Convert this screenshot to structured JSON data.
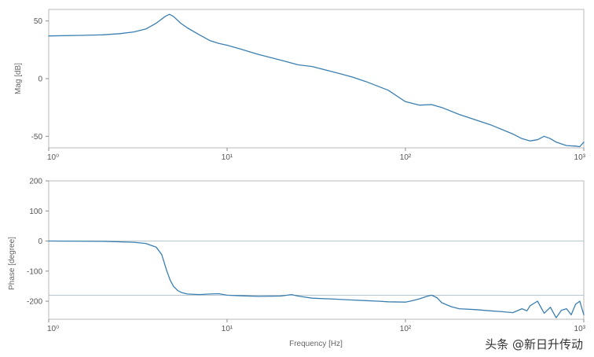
{
  "chart_data": [
    {
      "type": "line",
      "title": "",
      "xlabel": "",
      "ylabel": "Mag [dB]",
      "xscale": "log",
      "xlim": [
        1,
        1000
      ],
      "ylim": [
        -60,
        60
      ],
      "yticks": [
        50,
        0,
        -50
      ],
      "ytick_labels": [
        "50",
        "0",
        "-50"
      ],
      "xtick_labels": [
        "10⁰",
        "10¹",
        "10²",
        "10³"
      ],
      "grid": false,
      "series": [
        {
          "color": "#3a7fb0",
          "x": [
            1,
            1.5,
            2,
            2.5,
            3,
            3.5,
            4,
            4.5,
            4.75,
            5,
            5.5,
            6,
            7,
            8,
            9,
            10,
            12,
            15,
            20,
            25,
            30,
            40,
            50,
            60,
            80,
            100,
            120,
            140,
            160,
            200,
            300,
            400,
            450,
            500,
            550,
            600,
            650,
            700,
            800,
            900,
            950,
            1000
          ],
          "y": [
            37,
            37.5,
            38,
            39,
            40.5,
            43,
            48,
            54,
            55.8,
            54,
            48,
            44,
            38,
            33,
            30.5,
            29,
            25.5,
            21,
            16,
            12,
            10.5,
            5.5,
            1.5,
            -2.5,
            -10,
            -20,
            -23,
            -22.5,
            -25,
            -31,
            -40,
            -48,
            -52,
            -54,
            -53,
            -50,
            -52,
            -55,
            -58,
            -58.5,
            -59,
            -55
          ]
        }
      ]
    },
    {
      "type": "line",
      "title": "",
      "xlabel": "Frequency [Hz]",
      "ylabel": "Phase [degree]",
      "xscale": "log",
      "xlim": [
        1,
        1000
      ],
      "ylim": [
        -260,
        200
      ],
      "yticks": [
        200,
        100,
        0,
        -100,
        -200
      ],
      "ytick_labels": [
        "200",
        "100",
        "0",
        "-100",
        "-200"
      ],
      "xtick_labels": [
        "10⁰",
        "10¹",
        "10²",
        "10³"
      ],
      "grid": false,
      "reference_lines": [
        0,
        -180
      ],
      "series": [
        {
          "color": "#3a7fb0",
          "x": [
            1,
            2,
            3,
            3.5,
            4,
            4.3,
            4.6,
            4.8,
            5,
            5.3,
            5.6,
            6,
            7,
            8,
            9,
            10,
            12,
            15,
            20,
            23,
            25,
            30,
            40,
            50,
            60,
            70,
            80,
            100,
            110,
            120,
            130,
            140,
            150,
            160,
            180,
            200,
            250,
            300,
            350,
            400,
            450,
            480,
            500,
            550,
            600,
            650,
            700,
            750,
            800,
            850,
            900,
            950,
            1000
          ],
          "y": [
            0,
            -1,
            -4,
            -8,
            -20,
            -45,
            -100,
            -130,
            -150,
            -165,
            -172,
            -176,
            -178,
            -176,
            -175,
            -180,
            -182,
            -184,
            -183,
            -178,
            -183,
            -190,
            -193,
            -196,
            -198,
            -200,
            -202,
            -203,
            -198,
            -192,
            -185,
            -180,
            -188,
            -205,
            -218,
            -225,
            -228,
            -232,
            -235,
            -238,
            -225,
            -232,
            -215,
            -200,
            -240,
            -220,
            -255,
            -230,
            -225,
            -245,
            -210,
            -200,
            -245
          ]
        }
      ]
    }
  ],
  "watermark": "头条 @新日升传动"
}
